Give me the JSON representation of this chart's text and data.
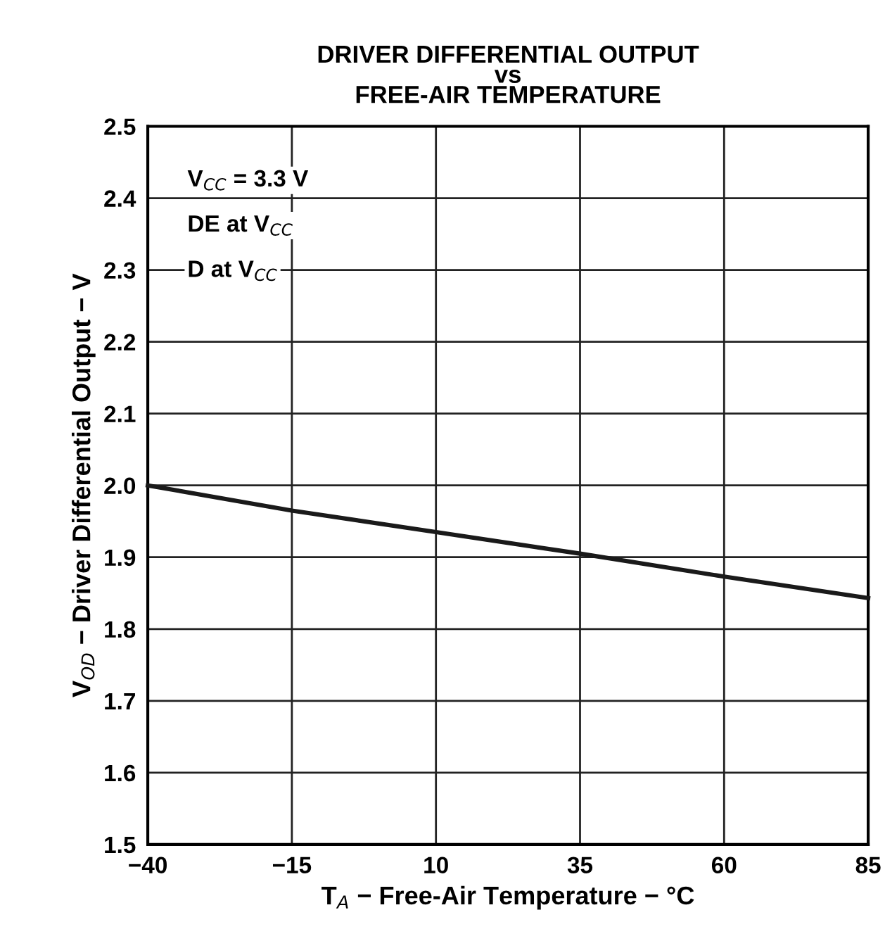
{
  "chart_data": {
    "type": "line",
    "title": "DRIVER DIFFERENTIAL OUTPUT\nvs\nFREE-AIR TEMPERATURE",
    "xlabel": "T$_{A}$ − Free-Air Temperature − °C",
    "ylabel": "V$_{OD}$ − Driver Differential Output − V",
    "annotations": [
      "V$_{CC}$ = 3.3 V",
      "DE at V$_{CC}$",
      "D at V$_{CC}$"
    ],
    "x": [
      -40,
      -15,
      10,
      35,
      60,
      85
    ],
    "series": [
      {
        "color": "#1a1a1a",
        "values": [
          2.0,
          1.965,
          1.935,
          1.905,
          1.873,
          1.843
        ]
      }
    ],
    "xlim": [
      -40,
      85
    ],
    "ylim": [
      1.5,
      2.5
    ],
    "xticks": [
      {
        "value": -40,
        "label": "−40"
      },
      {
        "value": -15,
        "label": "−15"
      },
      10,
      35,
      60,
      85
    ],
    "yticks": [
      1.5,
      1.6,
      1.7,
      1.8,
      1.9,
      {
        "value": 2,
        "label": "2.0"
      },
      2.1,
      2.2,
      2.3,
      2.4,
      2.5
    ],
    "grid": true,
    "legend": false,
    "marker": "none",
    "line_style": "solid"
  }
}
